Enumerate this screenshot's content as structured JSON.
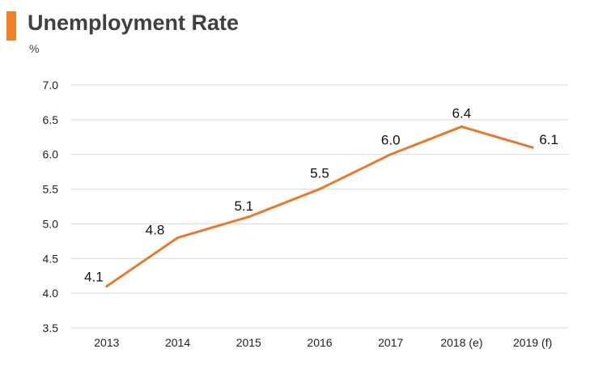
{
  "header": {
    "title": "Unemployment Rate",
    "unit": "%"
  },
  "colors": {
    "accent": "#F07F2A",
    "line": "#E8792B",
    "grid": "#D9D9D9",
    "text": "#404040"
  },
  "chart_data": {
    "type": "line",
    "title": "Unemployment Rate",
    "ylabel": "%",
    "xlabel": "",
    "categories": [
      "2013",
      "2014",
      "2015",
      "2016",
      "2017",
      "2018 (e)",
      "2019 (f)"
    ],
    "values": [
      4.1,
      4.8,
      5.1,
      5.5,
      6.0,
      6.4,
      6.1
    ],
    "value_labels": [
      "4.1",
      "4.8",
      "5.1",
      "5.5",
      "6.0",
      "6.4",
      "6.1"
    ],
    "yticks": [
      "3.5",
      "4.0",
      "4.5",
      "5.0",
      "5.5",
      "6.0",
      "6.5",
      "7.0"
    ],
    "ylim": [
      3.5,
      7.0
    ],
    "grid": true,
    "legend": "none"
  }
}
